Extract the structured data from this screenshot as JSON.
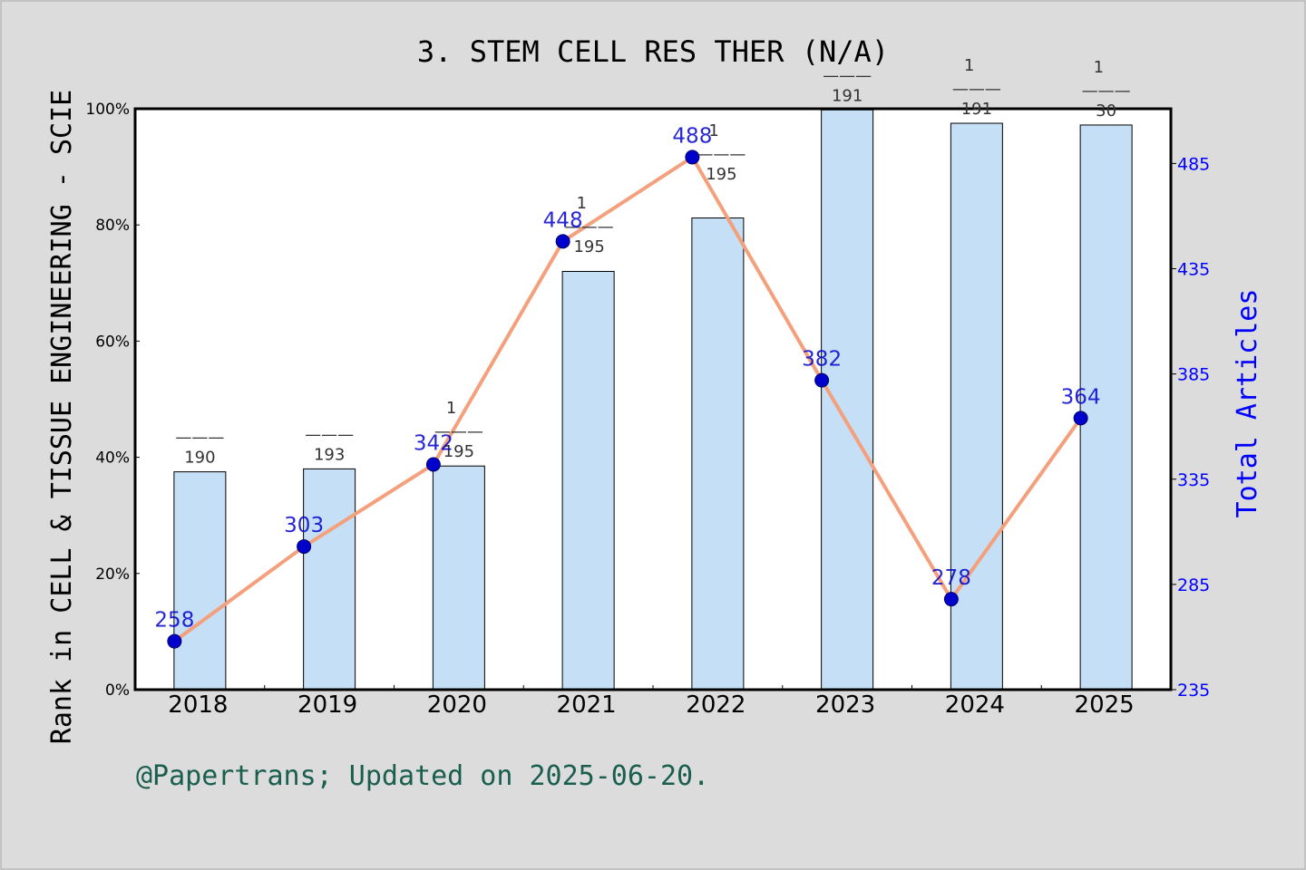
{
  "chart_data": {
    "type": "bar",
    "title": "3. STEM CELL RES THER (N/A)",
    "ylabel": "Rank in CELL & TISSUE ENGINEERING - SCIE",
    "y2label": "Total Articles",
    "footer": "@Papertrans; Updated on 2025-06-20.",
    "categories": [
      "2018",
      "2019",
      "2020",
      "2021",
      "2022",
      "2023",
      "2024",
      "2025"
    ],
    "yticks": [
      "0%",
      "20%",
      "40%",
      "60%",
      "80%",
      "100%"
    ],
    "y2ticks": [
      "235",
      "285",
      "335",
      "385",
      "435",
      "485"
    ],
    "ylim": [
      0,
      100
    ],
    "y2lim": [
      235,
      511
    ],
    "series": [
      {
        "kind": "bar",
        "values": [
          37.5,
          38.0,
          38.5,
          72.0,
          81.2,
          99.8,
          97.5,
          97.2
        ],
        "rank_labels": [
          {
            "num": "",
            "den": "190"
          },
          {
            "num": "",
            "den": "193"
          },
          {
            "num": "1",
            "den": "195"
          },
          {
            "num": "1",
            "den": "195"
          },
          {
            "num": "1",
            "den": "195"
          },
          {
            "num": "",
            "den": "191"
          },
          {
            "num": "1",
            "den": "191"
          },
          {
            "num": "1",
            "den": "30"
          }
        ]
      },
      {
        "kind": "line",
        "values": [
          258,
          303,
          342,
          448,
          488,
          382,
          278,
          364
        ],
        "labels": [
          "258",
          "303",
          "342",
          "448",
          "488",
          "382",
          "278",
          "364"
        ]
      }
    ],
    "colors": {
      "bar_fill": "#c5dff7",
      "bar_stroke": "#000000",
      "line": "#f4a07c",
      "marker": "#0000cc",
      "point_label": "#0000cc",
      "y2_axis": "#0000ff",
      "footer": "#1a5e4e",
      "rank_label": "#333333",
      "background": "#dcdcdc",
      "plot_bg": "#ffffff"
    },
    "grid": false
  }
}
